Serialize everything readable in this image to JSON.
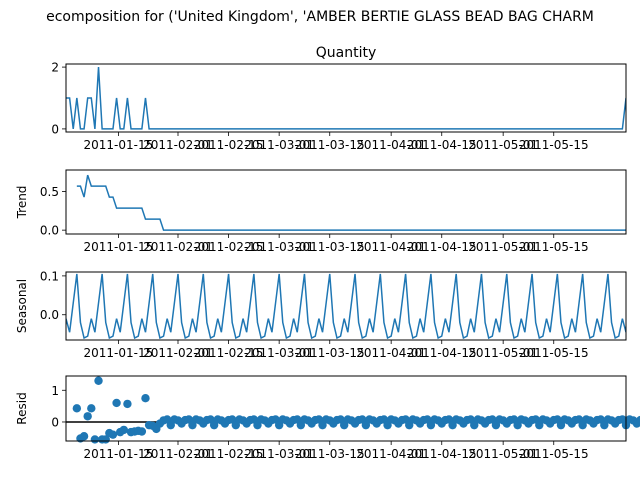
{
  "figure": {
    "suptitle": "ecomposition for ('United Kingdom', 'AMBER BERTIE GLASS BEAD BAG CHARM"
  },
  "chart_data": [
    {
      "type": "line",
      "title": "Quantity",
      "ylabel": "",
      "ylim": [
        -0.1,
        2.1
      ],
      "yticks": [
        0,
        2
      ],
      "color": "#1f77b4",
      "values": [
        1,
        1,
        0,
        1,
        0,
        0,
        1,
        1,
        0,
        2,
        0,
        0,
        0,
        0,
        1,
        0,
        0,
        1,
        0,
        0,
        0,
        0,
        1,
        0,
        0,
        0,
        0,
        0,
        0,
        0,
        0,
        0,
        0,
        0,
        0,
        0,
        0,
        0,
        0,
        0,
        0,
        0,
        0,
        0,
        0,
        0,
        0,
        0,
        0,
        0,
        0,
        0,
        0,
        0,
        0,
        0,
        0,
        0,
        0,
        0,
        0,
        0,
        0,
        0,
        0,
        0,
        0,
        0,
        0,
        0,
        0,
        0,
        0,
        0,
        0,
        0,
        0,
        0,
        0,
        0,
        0,
        0,
        0,
        0,
        0,
        0,
        0,
        0,
        0,
        0,
        0,
        0,
        0,
        0,
        0,
        0,
        0,
        0,
        0,
        0,
        0,
        0,
        0,
        0,
        0,
        0,
        0,
        0,
        0,
        0,
        0,
        0,
        0,
        0,
        0,
        0,
        0,
        0,
        0,
        0,
        0,
        0,
        0,
        0,
        0,
        0,
        0,
        0,
        0,
        0,
        0,
        0,
        0,
        0,
        0,
        0,
        0,
        0,
        0,
        0,
        0,
        0,
        0,
        0,
        0,
        0,
        0,
        0,
        0,
        0,
        0,
        0,
        0,
        0,
        0,
        1
      ]
    },
    {
      "type": "line",
      "title": "",
      "ylabel": "Trend",
      "ylim": [
        -0.05,
        0.78
      ],
      "yticks": [
        0.0,
        0.5
      ],
      "color": "#1f77b4",
      "values": [
        null,
        null,
        null,
        0.571,
        0.571,
        0.429,
        0.714,
        0.571,
        0.571,
        0.571,
        0.571,
        0.571,
        0.429,
        0.429,
        0.286,
        0.286,
        0.286,
        0.286,
        0.286,
        0.286,
        0.286,
        0.286,
        0.143,
        0.143,
        0.143,
        0.143,
        0.143,
        0,
        0,
        0,
        0,
        0,
        0,
        0,
        0,
        0,
        0,
        0,
        0,
        0,
        0,
        0,
        0,
        0,
        0,
        0,
        0,
        0,
        0,
        0,
        0,
        0,
        0,
        0,
        0,
        0,
        0,
        0,
        0,
        0,
        0,
        0,
        0,
        0,
        0,
        0,
        0,
        0,
        0,
        0,
        0,
        0,
        0,
        0,
        0,
        0,
        0,
        0,
        0,
        0,
        0,
        0,
        0,
        0,
        0,
        0,
        0,
        0,
        0,
        0,
        0,
        0,
        0,
        0,
        0,
        0,
        0,
        0,
        0,
        0,
        0,
        0,
        0,
        0,
        0,
        0,
        0,
        0,
        0,
        0,
        0,
        0,
        0,
        0,
        0,
        0,
        0,
        0,
        0,
        0,
        0,
        0,
        0,
        0,
        0,
        0,
        0,
        0,
        0,
        0,
        0,
        0,
        0,
        0,
        0,
        0,
        0,
        0,
        0,
        0,
        0,
        0,
        0,
        0,
        0,
        0,
        0,
        0,
        0,
        0,
        0,
        0,
        0,
        0,
        0,
        0,
        0,
        0,
        0,
        0,
        0,
        0,
        0,
        0,
        0,
        0.143,
        null,
        null,
        null
      ]
    },
    {
      "type": "line",
      "title": "",
      "ylabel": "Seasonal",
      "ylim": [
        -0.065,
        0.11
      ],
      "yticks": [
        0.0,
        0.1
      ],
      "color": "#1f77b4",
      "pattern": [
        -0.01,
        -0.045,
        0.03,
        0.105,
        -0.02,
        -0.06,
        -0.055
      ],
      "length": 156
    },
    {
      "type": "scatter",
      "title": "",
      "ylabel": "Resid",
      "ylim": [
        -0.6,
        1.45
      ],
      "yticks": [
        0,
        1
      ],
      "color": "#1f77b4",
      "baseline": 0,
      "values": [
        null,
        null,
        null,
        0.43,
        -0.52,
        -0.45,
        0.18,
        0.43,
        -0.55,
        1.3,
        -0.55,
        -0.55,
        -0.35,
        -0.4,
        0.6,
        -0.32,
        -0.25,
        0.57,
        -0.32,
        -0.3,
        -0.28,
        -0.3,
        0.75,
        -0.1,
        -0.12,
        -0.22,
        -0.05,
        0.05,
        0.08,
        -0.1,
        0.08,
        0.05,
        -0.05,
        0.06,
        0.08,
        -0.1,
        0.08,
        0.05,
        -0.05,
        0.06,
        0.08,
        -0.1,
        0.08,
        0.05,
        -0.05,
        0.06,
        0.08,
        -0.1,
        0.08,
        0.05,
        -0.05,
        0.06,
        0.08,
        -0.1,
        0.08,
        0.05,
        -0.05,
        0.06,
        0.08,
        -0.1,
        0.08,
        0.05,
        -0.05,
        0.06,
        0.08,
        -0.1,
        0.08,
        0.05,
        -0.05,
        0.06,
        0.08,
        -0.1,
        0.08,
        0.05,
        -0.05,
        0.06,
        0.08,
        -0.1,
        0.08,
        0.05,
        -0.05,
        0.06,
        0.08,
        -0.1,
        0.08,
        0.05,
        -0.05,
        0.06,
        0.08,
        -0.1,
        0.08,
        0.05,
        -0.05,
        0.06,
        0.08,
        -0.1,
        0.08,
        0.05,
        -0.05,
        0.06,
        0.08,
        -0.1,
        0.08,
        0.05,
        -0.05,
        0.06,
        0.08,
        -0.1,
        0.08,
        0.05,
        -0.05,
        0.06,
        0.08,
        -0.1,
        0.08,
        0.05,
        -0.05,
        0.06,
        0.08,
        -0.1,
        0.08,
        0.05,
        -0.05,
        0.06,
        0.08,
        -0.1,
        0.08,
        0.05,
        -0.05,
        0.06,
        0.08,
        -0.1,
        0.08,
        0.05,
        -0.05,
        0.06,
        0.08,
        -0.1,
        0.08,
        0.05,
        -0.05,
        0.06,
        0.08,
        -0.1,
        0.08,
        0.05,
        -0.05,
        0.06,
        0.08,
        -0.1,
        0.08,
        0.05,
        -0.05,
        0.06,
        0.08,
        -0.1,
        0.08,
        0.05,
        -0.05,
        0.06,
        0.08,
        -0.22,
        null,
        null,
        null
      ]
    }
  ],
  "x_axis": {
    "n_points": 156,
    "tick_labels": [
      "2011-01-15",
      "2011-02-01",
      "2011-02-15",
      "2011-03-01",
      "2011-03-15",
      "2011-04-01",
      "2011-04-15",
      "2011-05-01",
      "2011-05-15"
    ],
    "tick_index": [
      14.5,
      31,
      45,
      59,
      73,
      90,
      104,
      121,
      135
    ]
  }
}
